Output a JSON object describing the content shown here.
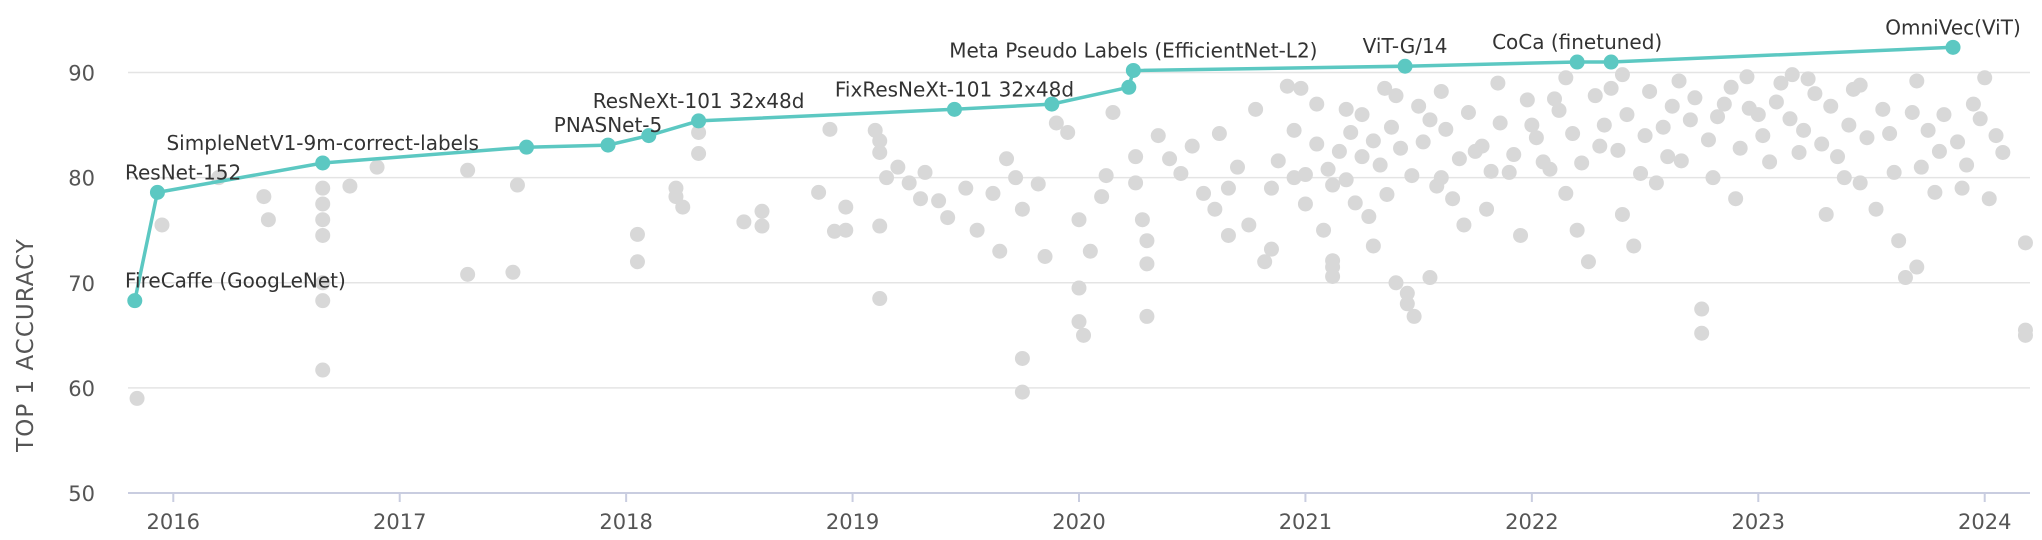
{
  "chart_data": {
    "type": "scatter",
    "title": "",
    "xlabel": "",
    "ylabel": "TOP 1 ACCURACY",
    "xlim": [
      2015.8,
      2024.2
    ],
    "ylim": [
      50,
      95
    ],
    "xticks": [
      2016,
      2017,
      2018,
      2019,
      2020,
      2021,
      2022,
      2023,
      2024
    ],
    "yticks": [
      50,
      60,
      70,
      80,
      90
    ],
    "grid": "horizontal",
    "colors": {
      "sota": "#5cc8c2",
      "other": "#d8d8d8",
      "grid": "#e4e4e4",
      "axis": "#c9cde0"
    },
    "sota_series": [
      {
        "x": 2015.83,
        "y": 68.3,
        "label": "FireCaffe (GoogLeNet)"
      },
      {
        "x": 2015.93,
        "y": 78.6,
        "label": "ResNet-152"
      },
      {
        "x": 2016.66,
        "y": 81.4,
        "label": "SimpleNetV1-9m-correct-labels"
      },
      {
        "x": 2017.56,
        "y": 82.9,
        "label": ""
      },
      {
        "x": 2017.92,
        "y": 83.1,
        "label": "PNASNet-5"
      },
      {
        "x": 2018.1,
        "y": 84.0,
        "label": ""
      },
      {
        "x": 2018.32,
        "y": 85.4,
        "label": "ResNeXt-101 32x48d"
      },
      {
        "x": 2019.45,
        "y": 86.5,
        "label": "FixResNeXt-101 32x48d"
      },
      {
        "x": 2019.88,
        "y": 87.0,
        "label": ""
      },
      {
        "x": 2020.22,
        "y": 88.6,
        "label": ""
      },
      {
        "x": 2020.24,
        "y": 90.2,
        "label": "Meta Pseudo Labels (EfficientNet-L2)"
      },
      {
        "x": 2021.44,
        "y": 90.6,
        "label": "ViT-G/14"
      },
      {
        "x": 2022.2,
        "y": 91.0,
        "label": "CoCa (finetuned)"
      },
      {
        "x": 2022.35,
        "y": 91.0,
        "label": ""
      },
      {
        "x": 2023.86,
        "y": 92.4,
        "label": "OmniVec(ViT)"
      }
    ],
    "other_models": [
      [
        2015.84,
        59.0
      ],
      [
        2015.95,
        75.5
      ],
      [
        2016.2,
        80.0
      ],
      [
        2016.4,
        78.2
      ],
      [
        2016.42,
        76.0
      ],
      [
        2016.66,
        61.7
      ],
      [
        2016.66,
        68.3
      ],
      [
        2016.66,
        70.0
      ],
      [
        2016.66,
        74.5
      ],
      [
        2016.66,
        76.0
      ],
      [
        2016.66,
        77.5
      ],
      [
        2016.66,
        79.0
      ],
      [
        2016.78,
        79.2
      ],
      [
        2016.9,
        81.0
      ],
      [
        2017.3,
        70.8
      ],
      [
        2017.3,
        80.7
      ],
      [
        2017.5,
        71.0
      ],
      [
        2017.52,
        79.3
      ],
      [
        2018.05,
        74.6
      ],
      [
        2018.05,
        72.0
      ],
      [
        2018.22,
        79.0
      ],
      [
        2018.22,
        78.2
      ],
      [
        2018.25,
        77.2
      ],
      [
        2018.32,
        82.3
      ],
      [
        2018.32,
        84.3
      ],
      [
        2018.52,
        75.8
      ],
      [
        2018.6,
        76.8
      ],
      [
        2018.6,
        75.4
      ],
      [
        2018.85,
        78.6
      ],
      [
        2018.9,
        84.6
      ],
      [
        2018.92,
        74.9
      ],
      [
        2018.97,
        77.2
      ],
      [
        2018.97,
        75.0
      ],
      [
        2019.12,
        68.5
      ],
      [
        2019.12,
        75.4
      ],
      [
        2019.1,
        84.5
      ],
      [
        2019.12,
        83.5
      ],
      [
        2019.15,
        80.0
      ],
      [
        2019.12,
        82.4
      ],
      [
        2019.2,
        81.0
      ],
      [
        2019.25,
        79.5
      ],
      [
        2019.3,
        78.0
      ],
      [
        2019.32,
        80.5
      ],
      [
        2019.38,
        77.8
      ],
      [
        2019.42,
        76.2
      ],
      [
        2019.5,
        79.0
      ],
      [
        2019.55,
        75.0
      ],
      [
        2019.62,
        78.5
      ],
      [
        2019.65,
        73.0
      ],
      [
        2019.68,
        81.8
      ],
      [
        2019.72,
        80.0
      ],
      [
        2019.75,
        77.0
      ],
      [
        2019.75,
        62.8
      ],
      [
        2019.75,
        59.6
      ],
      [
        2019.82,
        79.4
      ],
      [
        2019.85,
        72.5
      ],
      [
        2019.9,
        85.2
      ],
      [
        2019.95,
        84.3
      ],
      [
        2020.0,
        76.0
      ],
      [
        2020.0,
        69.5
      ],
      [
        2020.0,
        66.3
      ],
      [
        2020.02,
        65.0
      ],
      [
        2020.05,
        73.0
      ],
      [
        2020.1,
        78.2
      ],
      [
        2020.12,
        80.2
      ],
      [
        2020.15,
        86.2
      ],
      [
        2020.25,
        82.0
      ],
      [
        2020.25,
        79.5
      ],
      [
        2020.28,
        76.0
      ],
      [
        2020.3,
        74.0
      ],
      [
        2020.3,
        71.8
      ],
      [
        2020.3,
        66.8
      ],
      [
        2020.35,
        84.0
      ],
      [
        2020.4,
        81.8
      ],
      [
        2020.45,
        80.4
      ],
      [
        2020.62,
        84.2
      ],
      [
        2020.66,
        79.0
      ],
      [
        2020.66,
        74.5
      ],
      [
        2020.82,
        72.0
      ],
      [
        2020.85,
        73.2
      ],
      [
        2020.85,
        79.0
      ],
      [
        2020.88,
        81.6
      ],
      [
        2020.92,
        88.7
      ],
      [
        2020.95,
        80.0
      ],
      [
        2021.0,
        77.5
      ],
      [
        2021.0,
        80.3
      ],
      [
        2021.05,
        83.2
      ],
      [
        2021.12,
        79.3
      ],
      [
        2021.1,
        80.8
      ],
      [
        2021.12,
        70.6
      ],
      [
        2021.12,
        71.5
      ],
      [
        2021.12,
        72.1
      ],
      [
        2021.25,
        82.0
      ],
      [
        2021.3,
        83.5
      ],
      [
        2021.35,
        88.5
      ],
      [
        2021.28,
        76.3
      ],
      [
        2021.3,
        73.5
      ],
      [
        2021.4,
        70.0
      ],
      [
        2021.45,
        69.0
      ],
      [
        2021.45,
        68.0
      ],
      [
        2021.48,
        66.8
      ],
      [
        2021.55,
        70.5
      ],
      [
        2021.55,
        85.5
      ],
      [
        2021.6,
        80.0
      ],
      [
        2021.65,
        78.0
      ],
      [
        2021.7,
        75.5
      ],
      [
        2021.75,
        82.5
      ],
      [
        2021.8,
        77.0
      ],
      [
        2021.9,
        80.5
      ],
      [
        2021.95,
        74.5
      ],
      [
        2022.0,
        85.0
      ],
      [
        2022.05,
        81.5
      ],
      [
        2022.1,
        87.5
      ],
      [
        2022.15,
        78.5
      ],
      [
        2022.2,
        75.0
      ],
      [
        2022.25,
        72.0
      ],
      [
        2022.3,
        83.0
      ],
      [
        2022.35,
        88.5
      ],
      [
        2022.4,
        76.5
      ],
      [
        2022.45,
        73.5
      ],
      [
        2022.5,
        84.0
      ],
      [
        2022.55,
        79.5
      ],
      [
        2022.6,
        82.0
      ],
      [
        2022.7,
        85.5
      ],
      [
        2022.75,
        67.5
      ],
      [
        2022.75,
        65.2
      ],
      [
        2022.8,
        80.0
      ],
      [
        2022.85,
        87.0
      ],
      [
        2022.9,
        78.0
      ],
      [
        2023.0,
        86.0
      ],
      [
        2023.05,
        81.5
      ],
      [
        2023.1,
        89.0
      ],
      [
        2023.2,
        84.5
      ],
      [
        2023.25,
        88.0
      ],
      [
        2023.3,
        76.5
      ],
      [
        2023.35,
        82.0
      ],
      [
        2023.4,
        85.0
      ],
      [
        2023.45,
        79.5
      ],
      [
        2023.55,
        86.5
      ],
      [
        2023.6,
        80.5
      ],
      [
        2023.65,
        70.5
      ],
      [
        2023.7,
        71.5
      ],
      [
        2023.75,
        84.5
      ],
      [
        2023.8,
        82.5
      ],
      [
        2023.9,
        79.0
      ],
      [
        2023.95,
        87.0
      ],
      [
        2024.0,
        89.5
      ],
      [
        2024.05,
        84.0
      ],
      [
        2024.18,
        73.8
      ],
      [
        2024.18,
        65.5
      ],
      [
        2024.18,
        65.0
      ],
      [
        2021.15,
        82.5
      ],
      [
        2021.18,
        79.8
      ],
      [
        2021.2,
        84.3
      ],
      [
        2021.22,
        77.6
      ],
      [
        2021.25,
        86.0
      ],
      [
        2021.33,
        81.2
      ],
      [
        2021.36,
        78.4
      ],
      [
        2021.38,
        84.8
      ],
      [
        2021.42,
        82.8
      ],
      [
        2021.47,
        80.2
      ],
      [
        2021.5,
        86.8
      ],
      [
        2021.52,
        83.4
      ],
      [
        2021.58,
        79.2
      ],
      [
        2021.62,
        84.6
      ],
      [
        2021.68,
        81.8
      ],
      [
        2021.72,
        86.2
      ],
      [
        2021.78,
        83.0
      ],
      [
        2021.82,
        80.6
      ],
      [
        2021.86,
        85.2
      ],
      [
        2021.92,
        82.2
      ],
      [
        2021.98,
        87.4
      ],
      [
        2022.02,
        83.8
      ],
      [
        2022.08,
        80.8
      ],
      [
        2022.12,
        86.4
      ],
      [
        2022.18,
        84.2
      ],
      [
        2022.22,
        81.4
      ],
      [
        2022.28,
        87.8
      ],
      [
        2022.32,
        85.0
      ],
      [
        2022.38,
        82.6
      ],
      [
        2022.42,
        86.0
      ],
      [
        2022.48,
        80.4
      ],
      [
        2022.52,
        88.2
      ],
      [
        2022.58,
        84.8
      ],
      [
        2022.62,
        86.8
      ],
      [
        2022.66,
        81.6
      ],
      [
        2022.72,
        87.6
      ],
      [
        2022.78,
        83.6
      ],
      [
        2022.82,
        85.8
      ],
      [
        2022.88,
        88.6
      ],
      [
        2022.92,
        82.8
      ],
      [
        2022.96,
        86.6
      ],
      [
        2023.02,
        84.0
      ],
      [
        2023.08,
        87.2
      ],
      [
        2023.14,
        85.6
      ],
      [
        2023.18,
        82.4
      ],
      [
        2023.22,
        89.4
      ],
      [
        2023.28,
        83.2
      ],
      [
        2023.32,
        86.8
      ],
      [
        2023.38,
        80.0
      ],
      [
        2023.42,
        88.4
      ],
      [
        2023.48,
        83.8
      ],
      [
        2023.52,
        77.0
      ],
      [
        2023.58,
        84.2
      ],
      [
        2023.62,
        74.0
      ],
      [
        2023.68,
        86.2
      ],
      [
        2023.72,
        81.0
      ],
      [
        2023.78,
        78.6
      ],
      [
        2023.82,
        86.0
      ],
      [
        2023.88,
        83.4
      ],
      [
        2023.92,
        81.2
      ],
      [
        2023.98,
        85.6
      ],
      [
        2024.02,
        78.0
      ],
      [
        2024.08,
        82.4
      ],
      [
        2020.5,
        83.0
      ],
      [
        2020.55,
        78.5
      ],
      [
        2020.6,
        77.0
      ],
      [
        2020.7,
        81.0
      ],
      [
        2020.75,
        75.5
      ],
      [
        2020.78,
        86.5
      ],
      [
        2020.95,
        84.5
      ],
      [
        2020.98,
        88.5
      ],
      [
        2021.05,
        87.0
      ],
      [
        2021.08,
        75.0
      ],
      [
        2021.18,
        86.5
      ],
      [
        2021.4,
        87.8
      ],
      [
        2021.6,
        88.2
      ],
      [
        2021.85,
        89.0
      ],
      [
        2022.15,
        89.5
      ],
      [
        2022.4,
        89.8
      ],
      [
        2022.65,
        89.2
      ],
      [
        2022.95,
        89.6
      ],
      [
        2023.15,
        89.8
      ],
      [
        2023.45,
        88.8
      ],
      [
        2023.7,
        89.2
      ]
    ]
  }
}
